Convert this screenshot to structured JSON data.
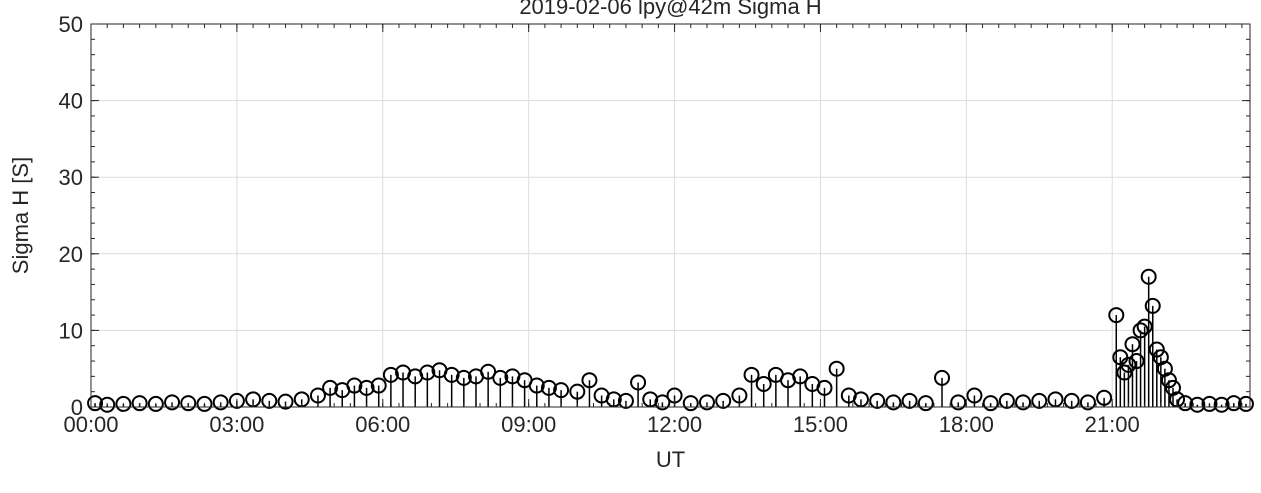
{
  "chart_data": {
    "type": "scatter",
    "title": "2019-02-06  lpy@42m Sigma H",
    "xlabel": "UT",
    "ylabel": "Sigma H [S]",
    "xlim": [
      "00:00",
      "23:50"
    ],
    "ylim": [
      0,
      50
    ],
    "xticks": [
      "00:00",
      "03:00",
      "06:00",
      "09:00",
      "12:00",
      "15:00",
      "18:00",
      "21:00"
    ],
    "yticks": [
      "0",
      "10",
      "20",
      "30",
      "40",
      "50"
    ],
    "grid": true,
    "marker": "open-circle",
    "series": [
      {
        "style": "stem",
        "color": "#000000",
        "x": [
          "00:05",
          "00:20",
          "00:40",
          "01:00",
          "01:20",
          "01:40",
          "02:00",
          "02:20",
          "02:40",
          "03:00",
          "03:20",
          "03:40",
          "04:00",
          "04:20",
          "04:40",
          "04:55",
          "05:10",
          "05:25",
          "05:40",
          "05:55",
          "06:10",
          "06:25",
          "06:40",
          "06:55",
          "07:10",
          "07:25",
          "07:40",
          "07:55",
          "08:10",
          "08:25",
          "08:40",
          "08:55",
          "09:10",
          "09:25",
          "09:40",
          "10:00",
          "10:15",
          "10:30",
          "10:45",
          "11:00",
          "11:15",
          "11:30",
          "11:45",
          "12:00",
          "12:20",
          "12:40",
          "13:00",
          "13:20",
          "13:35",
          "13:50",
          "14:05",
          "14:20",
          "14:35",
          "14:50",
          "15:05",
          "15:20",
          "15:35",
          "15:50",
          "16:10",
          "16:30",
          "16:50",
          "17:10",
          "17:30",
          "17:50",
          "18:10",
          "18:30",
          "18:50",
          "19:10",
          "19:30",
          "19:50",
          "20:10",
          "20:30",
          "20:50",
          "21:05",
          "21:10",
          "21:15",
          "21:20",
          "21:25",
          "21:30",
          "21:35",
          "21:40",
          "21:45",
          "21:50",
          "21:55",
          "22:00",
          "22:05",
          "22:10",
          "22:15",
          "22:20",
          "22:30",
          "22:45",
          "23:00",
          "23:15",
          "23:30",
          "23:45"
        ],
        "values": [
          0.5,
          0.3,
          0.4,
          0.5,
          0.4,
          0.6,
          0.5,
          0.4,
          0.6,
          0.8,
          1.0,
          0.8,
          0.7,
          1.0,
          1.5,
          2.5,
          2.2,
          2.8,
          2.5,
          2.8,
          4.2,
          4.5,
          4.0,
          4.5,
          4.8,
          4.2,
          3.8,
          4.0,
          4.6,
          3.8,
          4.0,
          3.5,
          2.8,
          2.5,
          2.2,
          2.0,
          3.5,
          1.5,
          1.0,
          0.8,
          3.2,
          1.0,
          0.6,
          1.5,
          0.5,
          0.6,
          0.8,
          1.5,
          4.2,
          3.0,
          4.2,
          3.5,
          4.0,
          3.0,
          2.5,
          5.0,
          1.5,
          1.0,
          0.8,
          0.6,
          0.8,
          0.5,
          3.8,
          0.6,
          1.5,
          0.5,
          0.8,
          0.6,
          0.8,
          1.0,
          0.8,
          0.6,
          1.2,
          12.0,
          6.5,
          4.5,
          5.5,
          8.2,
          6.0,
          10.0,
          10.5,
          17.0,
          13.2,
          7.5,
          6.5,
          5.0,
          3.5,
          2.5,
          1.0,
          0.5,
          0.3,
          0.4,
          0.3,
          0.5,
          0.4
        ]
      }
    ]
  }
}
